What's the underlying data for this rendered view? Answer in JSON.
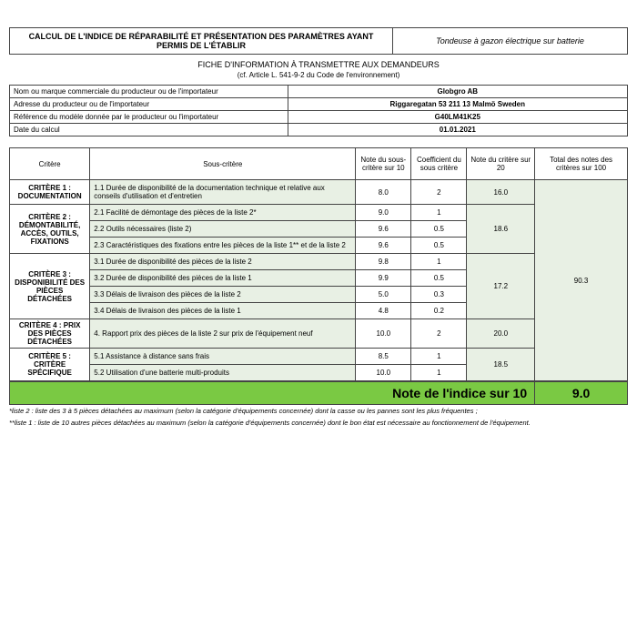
{
  "header": {
    "title": "CALCUL DE L'INDICE DE RÉPARABILITÉ ET PRÉSENTATION DES PARAMÈTRES AYANT PERMIS DE L'ÉTABLIR",
    "product": "Tondeuse à gazon électrique sur batterie",
    "subtitle1": "FICHE D'INFORMATION À TRANSMETTRE AUX DEMANDEURS",
    "subtitle2": "(cf. Article L. 541-9-2 du Code de l'environnement)"
  },
  "info": {
    "rows": [
      {
        "label": "Nom ou marque commerciale du producteur ou de l'importateur",
        "value": "Globgro AB"
      },
      {
        "label": "Adresse du producteur ou de l'importateur",
        "value": "Riggaregatan 53 211 13 Malmö Sweden"
      },
      {
        "label": "Référence du modèle donnée par le producteur ou l'importateur",
        "value": "G40LM41K25"
      },
      {
        "label": "Date du calcul",
        "value": "01.01.2021"
      }
    ]
  },
  "cols": {
    "critere": "Critère",
    "sous": "Sous-critère",
    "note_sc": "Note du sous-critère sur 10",
    "coef": "Coefficient du sous critère",
    "note_crit": "Note du critère sur 20",
    "total": "Total des notes des critères sur 100"
  },
  "criteria": [
    {
      "name": "CRITÈRE 1 : DOCUMENTATION",
      "score20": "16.0",
      "subs": [
        {
          "label": "1.1 Durée de disponibilité de la documentation technique et relative aux conseils d'utilisation et d'entretien",
          "note": "8.0",
          "coef": "2"
        }
      ]
    },
    {
      "name": "CRITÈRE 2 : DÉMONTABILITÉ, ACCÈS, OUTILS, FIXATIONS",
      "score20": "18.6",
      "subs": [
        {
          "label": "2.1 Facilité de démontage des pièces de la liste 2*",
          "note": "9.0",
          "coef": "1"
        },
        {
          "label": "2.2 Outils nécessaires (liste 2)",
          "note": "9.6",
          "coef": "0.5"
        },
        {
          "label": "2.3 Caractéristiques des fixations entre les pièces de la liste 1** et de la liste 2",
          "note": "9.6",
          "coef": "0.5"
        }
      ]
    },
    {
      "name": "CRITÈRE 3 : DISPONIBILITÉ DES PIÈCES DÉTACHÉES",
      "score20": "17.2",
      "subs": [
        {
          "label": "3.1 Durée de disponibilité des pièces de la liste 2",
          "note": "9.8",
          "coef": "1"
        },
        {
          "label": "3.2 Durée de disponibilité des pièces de la liste 1",
          "note": "9.9",
          "coef": "0.5"
        },
        {
          "label": "3.3 Délais de livraison des pièces de la liste 2",
          "note": "5.0",
          "coef": "0.3"
        },
        {
          "label": "3.4 Délais de livraison des pièces de la liste 1",
          "note": "4.8",
          "coef": "0.2"
        }
      ]
    },
    {
      "name": "CRITÈRE 4 : PRIX DES PIÈCES DÉTACHÉES",
      "score20": "20.0",
      "subs": [
        {
          "label": "4. Rapport prix des pièces de la liste 2 sur prix de l'équipement neuf",
          "note": "10.0",
          "coef": "2"
        }
      ]
    },
    {
      "name": "CRITÈRE 5 : CRITÈRE SPÉCIFIQUE",
      "score20": "18.5",
      "subs": [
        {
          "label": "5.1 Assistance à distance sans frais",
          "note": "8.5",
          "coef": "1"
        },
        {
          "label": "5.2 Utilisation d'une batterie multi-produits",
          "note": "10.0",
          "coef": "1"
        }
      ]
    }
  ],
  "total100": "90.3",
  "final": {
    "label": "Note de l'indice sur 10",
    "score": "9.0"
  },
  "footnotes": [
    "*liste 2 : liste des 3 à 5 pièces détachées au maximum (selon la catégorie d'équipements concernée) dont la casse ou les pannes sont les plus fréquentes ;",
    "**liste 1 : liste de 10 autres pièces détachées au maximum (selon la catégorie d'équipements concernée) dont le bon état est nécessaire au fonctionnement de l'équipement."
  ],
  "colors": {
    "border": "#444444",
    "light_bg": "#e8f0e4",
    "final_bg": "#7ac943",
    "text": "#000000"
  }
}
